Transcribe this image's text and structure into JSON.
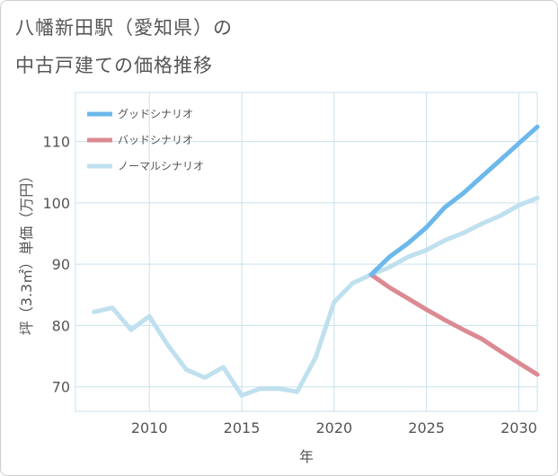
{
  "title": {
    "line1": "八幡新田駅（愛知県）の",
    "line2": "中古戸建ての価格推移"
  },
  "chart_data": {
    "type": "line",
    "xlabel": "年",
    "ylabel": "坪（3.3㎡）単価（万円）",
    "xlim": [
      2006,
      2031
    ],
    "ylim": [
      66,
      118
    ],
    "xticks": [
      2010,
      2015,
      2020,
      2025,
      2030
    ],
    "yticks": [
      70,
      80,
      90,
      100,
      110
    ],
    "grid": true,
    "legend_position": "top-left",
    "series": [
      {
        "name": "グッドシナリオ",
        "color": "#6cb8ea",
        "x": [
          2022,
          2023,
          2024,
          2025,
          2026,
          2027,
          2028,
          2029,
          2030,
          2031
        ],
        "y": [
          88.3,
          91.2,
          93.4,
          96.0,
          99.3,
          101.6,
          104.3,
          107.0,
          109.7,
          112.4
        ]
      },
      {
        "name": "バッドシナリオ",
        "color": "#dc8a92",
        "x": [
          2022,
          2023,
          2024,
          2025,
          2026,
          2027,
          2028,
          2029,
          2030,
          2031
        ],
        "y": [
          88.3,
          86.2,
          84.4,
          82.6,
          80.9,
          79.3,
          77.8,
          75.8,
          73.9,
          72.0
        ]
      },
      {
        "name": "ノーマルシナリオ",
        "color": "#bfe0ef",
        "x": [
          2007,
          2008,
          2009,
          2010,
          2011,
          2012,
          2013,
          2014,
          2015,
          2016,
          2017,
          2018,
          2019,
          2020,
          2021,
          2022,
          2023,
          2024,
          2025,
          2026,
          2027,
          2028,
          2029,
          2030,
          2031
        ],
        "y": [
          82.2,
          82.9,
          79.3,
          81.5,
          76.8,
          72.8,
          71.5,
          73.2,
          68.6,
          69.7,
          69.7,
          69.2,
          74.8,
          83.8,
          86.9,
          88.3,
          89.5,
          91.2,
          92.3,
          93.9,
          95.1,
          96.6,
          97.9,
          99.6,
          100.8
        ]
      }
    ]
  }
}
